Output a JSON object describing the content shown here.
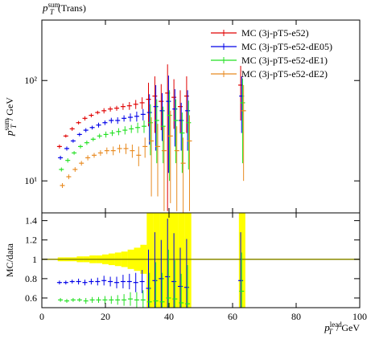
{
  "chart_data": [
    {
      "type": "errorbar",
      "log_y": true,
      "title": {
        "symbol": "p",
        "sub": "T",
        "sup": "sum",
        "text": "(Trans)"
      },
      "ylabel": {
        "symbol": "p",
        "sub": "T",
        "sup": "sum",
        "unit": "/ GeV"
      },
      "xlabel": {
        "symbol": "p",
        "sub": "T",
        "sup": "lead",
        "unit": "/ GeV"
      },
      "x": [
        6,
        8,
        10,
        12,
        14,
        16,
        18,
        20,
        22,
        24,
        26,
        28,
        30,
        32,
        34,
        36,
        38,
        40,
        42,
        44,
        46,
        63
      ],
      "xlim": [
        0,
        100
      ],
      "xticks": [
        0,
        20,
        40,
        60,
        80,
        100
      ],
      "ylim": [
        4.8,
        400
      ],
      "yticks": [
        {
          "value": 10,
          "label": "10¹"
        },
        {
          "value": 100,
          "label": "10²"
        }
      ],
      "legend": "upper right",
      "series": [
        {
          "name": "MC (3j-pT5-e52)",
          "color": "#e00000",
          "values": [
            22,
            28,
            33,
            38,
            42,
            45,
            48,
            50,
            52,
            53,
            55,
            56,
            58,
            60,
            65,
            70,
            62,
            75,
            68,
            55,
            70,
            90
          ],
          "errors": [
            1,
            1,
            1.5,
            1.5,
            2,
            2,
            2,
            3,
            3,
            3,
            4,
            5,
            6,
            8,
            30,
            40,
            30,
            70,
            35,
            25,
            40,
            50
          ]
        },
        {
          "name": "MC (3j-pT5-e52-dE05)",
          "color": "#0000e8",
          "values": [
            17,
            21,
            25,
            29,
            32,
            34,
            36,
            38,
            40,
            40,
            42,
            43,
            44,
            46,
            48,
            55,
            50,
            62,
            52,
            40,
            50,
            70
          ],
          "errors": [
            0.8,
            1,
            1,
            1.2,
            1.5,
            1.5,
            2,
            2,
            2.5,
            3,
            3,
            4,
            5,
            6,
            25,
            35,
            25,
            50,
            30,
            20,
            30,
            40
          ]
        },
        {
          "name": "MC (3j-pT5-e52-dE1)",
          "color": "#22e022",
          "values": [
            13,
            16,
            19,
            22,
            24,
            26,
            28,
            29,
            30,
            31,
            32,
            33,
            34,
            35,
            38,
            40,
            35,
            45,
            40,
            30,
            38,
            60
          ],
          "errors": [
            0.6,
            0.8,
            0.8,
            1,
            1.2,
            1.2,
            1.5,
            2,
            2,
            2.5,
            3,
            3,
            4,
            5,
            20,
            25,
            20,
            35,
            25,
            18,
            25,
            45
          ]
        },
        {
          "name": "MC (3j-pT5-e52-dE2)",
          "color": "#e88a20",
          "values": [
            9,
            11,
            13,
            15,
            17,
            18,
            19,
            20,
            20,
            21,
            21,
            20,
            18,
            22,
            25,
            22,
            20,
            28,
            20,
            15,
            25,
            50
          ],
          "errors": [
            0.5,
            0.6,
            0.7,
            0.8,
            1,
            1,
            1.2,
            1.5,
            2,
            2,
            2.5,
            3,
            4,
            5,
            18,
            15,
            15,
            22,
            15,
            12,
            20,
            40
          ]
        }
      ]
    },
    {
      "type": "ratio",
      "ylabel": "MC/data",
      "ylim": [
        0.5,
        1.48
      ],
      "yticks": [
        0.6,
        0.8,
        1,
        1.2,
        1.4
      ],
      "reference": 1,
      "band_color": "#ffff00",
      "band": [
        0.02,
        0.02,
        0.02,
        0.03,
        0.03,
        0.04,
        0.04,
        0.05,
        0.06,
        0.07,
        0.08,
        0.1,
        0.12,
        0.15,
        0.6,
        0.6,
        0.5,
        0.6,
        0.5,
        0.6,
        0.6,
        0.6
      ],
      "series": [
        {
          "color": "#0000e8",
          "values": [
            0.76,
            0.76,
            0.77,
            0.77,
            0.76,
            0.77,
            0.77,
            0.78,
            0.77,
            0.76,
            0.77,
            0.77,
            0.76,
            0.77,
            0.7,
            0.78,
            0.8,
            0.82,
            0.77,
            0.72,
            0.71,
            0.78
          ],
          "errors": [
            0.02,
            0.02,
            0.02,
            0.03,
            0.03,
            0.03,
            0.04,
            0.05,
            0.05,
            0.06,
            0.07,
            0.08,
            0.1,
            0.12,
            0.4,
            0.5,
            0.4,
            0.6,
            0.5,
            0.4,
            0.5,
            0.5
          ]
        },
        {
          "color": "#22e022",
          "values": [
            0.58,
            0.57,
            0.58,
            0.58,
            0.57,
            0.58,
            0.58,
            0.58,
            0.58,
            0.58,
            0.58,
            0.59,
            0.58,
            0.58,
            0.56,
            0.57,
            0.56,
            0.6,
            0.59,
            0.55,
            0.54,
            0.67
          ],
          "errors": [
            0.02,
            0.02,
            0.02,
            0.02,
            0.03,
            0.03,
            0.03,
            0.04,
            0.04,
            0.05,
            0.06,
            0.07,
            0.08,
            0.1,
            0.3,
            0.4,
            0.3,
            0.5,
            0.4,
            0.3,
            0.4,
            0.4
          ]
        }
      ]
    }
  ]
}
